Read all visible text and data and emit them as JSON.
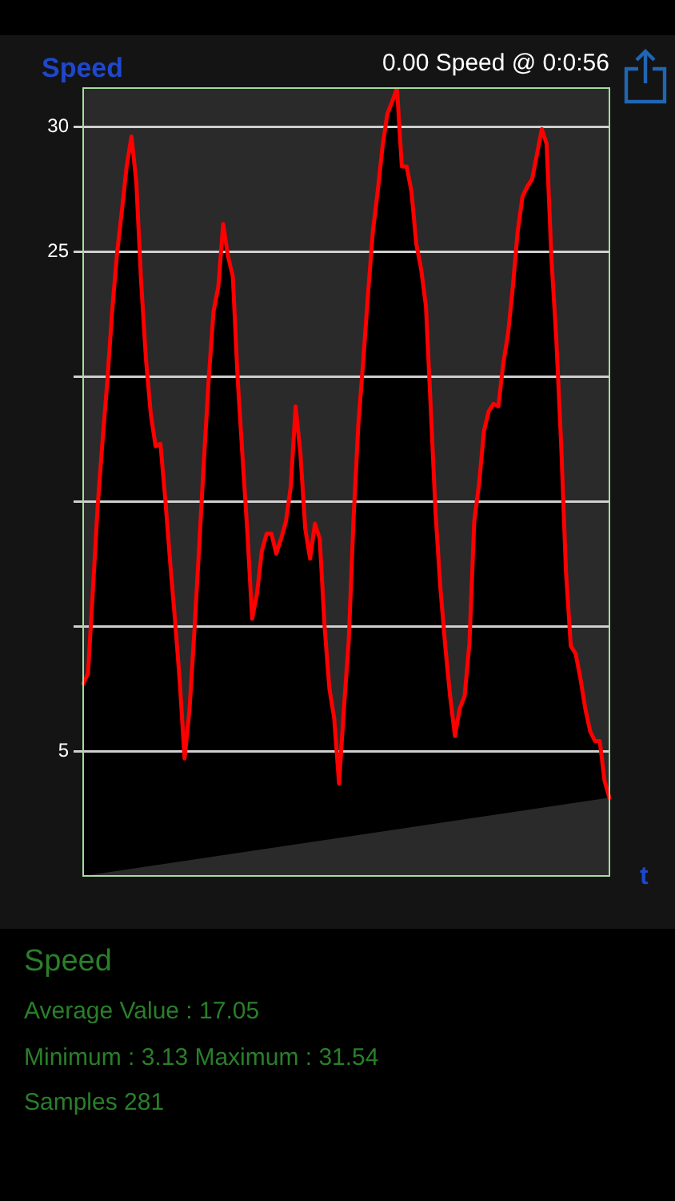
{
  "chart_data": {
    "type": "area",
    "title": "Speed",
    "subtitle": "0.00 Speed @ 0:0:56",
    "xlabel": "t",
    "annotations": [
      "Speed",
      "Average Value : 17.05",
      "Minimum : 3.13 Maximum : 31.54",
      "Samples 281"
    ],
    "categories": [
      null,
      null,
      null,
      null,
      null,
      null,
      null,
      null,
      null,
      null,
      null,
      null,
      null,
      null,
      null,
      null,
      null,
      null,
      null,
      null,
      null,
      null,
      null,
      null,
      null,
      null,
      null,
      null,
      null,
      null,
      null,
      null,
      null,
      null,
      null,
      null,
      null,
      null,
      null,
      null,
      null,
      null,
      null,
      null,
      null,
      null,
      null,
      null,
      null,
      null,
      null,
      null,
      null,
      null,
      null,
      null,
      null,
      null,
      null,
      null,
      null,
      null,
      null,
      null,
      null,
      null,
      null,
      null,
      null,
      null,
      null,
      null,
      null,
      null,
      null,
      null,
      null,
      null,
      null,
      null,
      null,
      null,
      null,
      null,
      null,
      null,
      null,
      null,
      null,
      null,
      null,
      null,
      null,
      null,
      null,
      null,
      null,
      null,
      null,
      null,
      null,
      null,
      null,
      null,
      null,
      null,
      null,
      null,
      null,
      null
    ],
    "values": [
      7.7,
      8.1,
      11.4,
      14.8,
      17.4,
      19.8,
      22.6,
      24.9,
      26.6,
      28.4,
      29.6,
      27.8,
      23.8,
      20.7,
      18.5,
      17.2,
      17.3,
      15.1,
      12.6,
      10.3,
      7.8,
      4.7,
      6.6,
      9.7,
      13.1,
      16.6,
      19.9,
      22.6,
      23.6,
      26.1,
      24.8,
      24.0,
      19.9,
      16.8,
      13.8,
      10.3,
      11.3,
      13.0,
      13.7,
      13.7,
      12.9,
      13.5,
      14.2,
      15.6,
      18.8,
      16.9,
      13.9,
      12.7,
      14.1,
      13.5,
      10.0,
      7.5,
      6.3,
      3.7,
      6.7,
      9.4,
      14.3,
      18.1,
      20.6,
      23.3,
      25.8,
      27.4,
      29.2,
      30.5,
      31.0,
      31.54,
      28.4,
      28.4,
      27.4,
      25.3,
      24.3,
      22.8,
      18.7,
      14.5,
      11.5,
      9.2,
      7.2,
      5.6,
      6.7,
      7.2,
      9.3,
      14.2,
      15.7,
      17.8,
      18.6,
      18.9,
      18.8,
      20.5,
      21.7,
      23.6,
      25.8,
      27.2,
      27.6,
      27.9,
      28.9,
      29.9,
      29.3,
      24.7,
      21.5,
      17.3,
      12.2,
      9.2,
      8.9,
      7.9,
      6.7,
      5.8,
      5.4,
      5.4,
      3.8,
      3.13
    ],
    "color": "#ff0000",
    "ylim": [
      0,
      31.54
    ],
    "yticks": [
      5,
      {
        "value": 10,
        "label": null
      },
      {
        "value": 15,
        "label": null
      },
      {
        "value": 20,
        "label": null
      },
      25,
      30
    ],
    "grid": "y",
    "marker": "none",
    "line_style": "solid"
  }
}
